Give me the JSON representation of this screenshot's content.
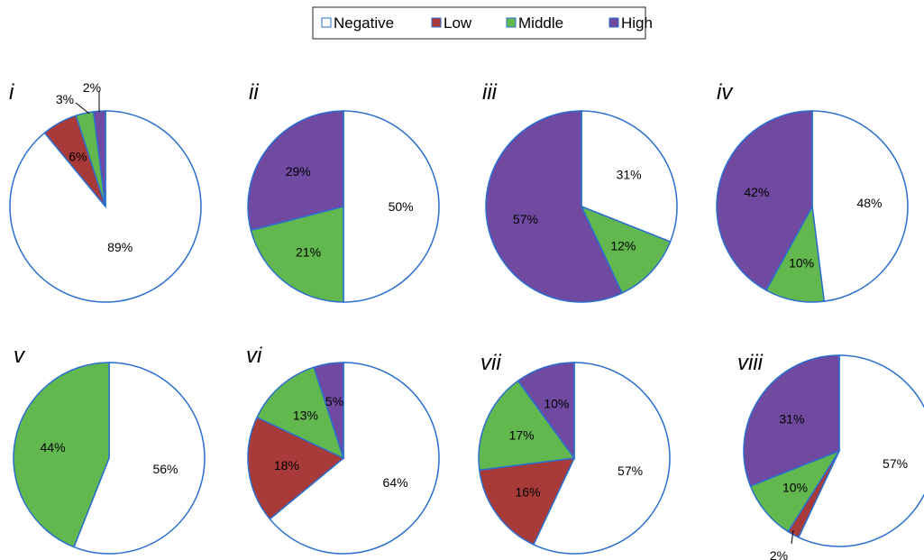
{
  "legend": {
    "items": [
      {
        "key": "negative",
        "label": "Negative",
        "color": "#ffffff"
      },
      {
        "key": "low",
        "label": "Low",
        "color": "#a83a3a"
      },
      {
        "key": "middle",
        "label": "Middle",
        "color": "#62b84f"
      },
      {
        "key": "high",
        "label": "High",
        "color": "#6f4aa0"
      }
    ],
    "placement": "top-center"
  },
  "colors": {
    "outline": "#2a6fcf"
  },
  "chart_data": [
    {
      "type": "pie",
      "panel": "i",
      "labels": [
        "Negative",
        "Low",
        "Middle",
        "High"
      ],
      "values": [
        89,
        6,
        3,
        2
      ],
      "value_labels": [
        "89%",
        "6%",
        "3%",
        "2%"
      ]
    },
    {
      "type": "pie",
      "panel": "ii",
      "labels": [
        "Negative",
        "Low",
        "Middle",
        "High"
      ],
      "values": [
        50,
        0,
        21,
        29
      ],
      "value_labels": [
        "50%",
        "",
        "21%",
        "29%"
      ]
    },
    {
      "type": "pie",
      "panel": "iii",
      "labels": [
        "Negative",
        "Low",
        "Middle",
        "High"
      ],
      "values": [
        31,
        0,
        12,
        57
      ],
      "value_labels": [
        "31%",
        "",
        "12%",
        "57%"
      ]
    },
    {
      "type": "pie",
      "panel": "iv",
      "labels": [
        "Negative",
        "Low",
        "Middle",
        "High"
      ],
      "values": [
        48,
        0,
        10,
        42
      ],
      "value_labels": [
        "48%",
        "",
        "10%",
        "42%"
      ]
    },
    {
      "type": "pie",
      "panel": "v",
      "labels": [
        "Negative",
        "Low",
        "Middle",
        "High"
      ],
      "values": [
        56,
        0,
        44,
        0
      ],
      "value_labels": [
        "56%",
        "",
        "44%",
        ""
      ]
    },
    {
      "type": "pie",
      "panel": "vi",
      "labels": [
        "Negative",
        "Low",
        "Middle",
        "High"
      ],
      "values": [
        64,
        18,
        13,
        5
      ],
      "value_labels": [
        "64%",
        "18%",
        "13%",
        "5%"
      ]
    },
    {
      "type": "pie",
      "panel": "vii",
      "labels": [
        "Negative",
        "Low",
        "Middle",
        "High"
      ],
      "values": [
        57,
        16,
        17,
        10
      ],
      "value_labels": [
        "57%",
        "16%",
        "17%",
        "10%"
      ]
    },
    {
      "type": "pie",
      "panel": "viii",
      "labels": [
        "Negative",
        "Low",
        "Middle",
        "High"
      ],
      "values": [
        57,
        2,
        10,
        31
      ],
      "value_labels": [
        "57%",
        "2%",
        "10%",
        "31%"
      ]
    }
  ]
}
